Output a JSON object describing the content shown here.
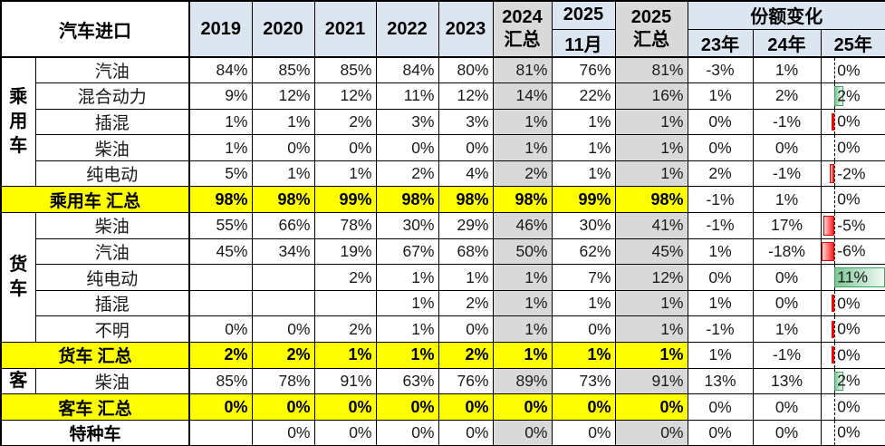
{
  "colors": {
    "header_blue": "#DCE6F1",
    "column_gray": "#D9D9D9",
    "summary_yellow": "#FFFF00",
    "databar_green": "#63BE7B",
    "databar_red": "#FF0000",
    "border_black": "#000000"
  },
  "table": {
    "header": {
      "title": "汽车进口",
      "years": [
        "2019",
        "2020",
        "2021",
        "2022",
        "2023"
      ],
      "total_2024": {
        "line1": "2024",
        "line2": "汇总"
      },
      "y2025": "2025",
      "nov": "11月",
      "total_2025": {
        "line1": "2025",
        "line2": "汇总"
      },
      "share_change": {
        "label": "份额变化",
        "years": [
          "23年",
          "24年",
          "25年"
        ]
      }
    },
    "rows": [
      {
        "kind": "data",
        "group": "乘用车",
        "group_span": 5,
        "label": "汽油",
        "values": [
          "84%",
          "85%",
          "85%",
          "84%",
          "80%",
          "81%",
          "76%",
          "81%"
        ],
        "share": [
          "-3%",
          "1%"
        ],
        "col25": {
          "text": "0%",
          "bar": "none",
          "size": 0
        }
      },
      {
        "kind": "data",
        "label": "混合动力",
        "values": [
          "9%",
          "12%",
          "12%",
          "11%",
          "12%",
          "14%",
          "22%",
          "16%"
        ],
        "share": [
          "1%",
          "2%"
        ],
        "col25": {
          "text": "2%",
          "bar": "pos",
          "size": 2
        }
      },
      {
        "kind": "data",
        "label": "插混",
        "values": [
          "1%",
          "1%",
          "2%",
          "3%",
          "3%",
          "1%",
          "1%",
          "1%"
        ],
        "share": [
          "0%",
          "-1%"
        ],
        "col25": {
          "text": "0%",
          "bar": "tick",
          "size": 0
        }
      },
      {
        "kind": "data",
        "label": "柴油",
        "values": [
          "1%",
          "0%",
          "0%",
          "0%",
          "0%",
          "1%",
          "1%",
          "1%"
        ],
        "share": [
          "0%",
          "0%"
        ],
        "col25": {
          "text": "0%",
          "bar": "none",
          "size": 0
        }
      },
      {
        "kind": "data",
        "label": "纯电动",
        "values": [
          "5%",
          "1%",
          "1%",
          "2%",
          "4%",
          "2%",
          "1%",
          "1%"
        ],
        "share": [
          "2%",
          "-1%"
        ],
        "col25": {
          "text": "-2%",
          "bar": "neg",
          "size": 2
        }
      },
      {
        "kind": "summary",
        "label": "乘用车 汇总",
        "values": [
          "98%",
          "98%",
          "99%",
          "98%",
          "98%",
          "98%",
          "99%",
          "98%"
        ],
        "share": [
          "-1%",
          "1%"
        ],
        "col25": {
          "text": "0%",
          "bar": "none",
          "size": 0
        }
      },
      {
        "kind": "data",
        "group": "货车",
        "group_span": 5,
        "label": "柴油",
        "values": [
          "55%",
          "66%",
          "78%",
          "30%",
          "29%",
          "46%",
          "30%",
          "41%"
        ],
        "share": [
          "-1%",
          "17%"
        ],
        "col25": {
          "text": "-5%",
          "bar": "neg",
          "size": 5
        }
      },
      {
        "kind": "data",
        "label": "汽油",
        "values": [
          "45%",
          "34%",
          "19%",
          "67%",
          "68%",
          "50%",
          "62%",
          "45%"
        ],
        "share": [
          "1%",
          "-18%"
        ],
        "col25": {
          "text": "-6%",
          "bar": "neg",
          "size": 6
        }
      },
      {
        "kind": "data",
        "label": "纯电动",
        "values": [
          "",
          "",
          "2%",
          "1%",
          "1%",
          "1%",
          "7%",
          "12%"
        ],
        "share": [
          "0%",
          "0%"
        ],
        "col25": {
          "text": "11%",
          "bar": "pos",
          "size": 11
        }
      },
      {
        "kind": "data",
        "label": "插混",
        "values": [
          "",
          "",
          "",
          "1%",
          "2%",
          "1%",
          "1%",
          "1%"
        ],
        "share": [
          "1%",
          "0%"
        ],
        "col25": {
          "text": "0%",
          "bar": "tick",
          "size": 0
        }
      },
      {
        "kind": "data",
        "label": "不明",
        "values": [
          "0%",
          "0%",
          "2%",
          "1%",
          "0%",
          "1%",
          "0%",
          "1%"
        ],
        "share": [
          "-1%",
          "1%"
        ],
        "col25": {
          "text": "0%",
          "bar": "tick",
          "size": 0
        }
      },
      {
        "kind": "summary",
        "label": "货车 汇总",
        "values": [
          "2%",
          "2%",
          "1%",
          "1%",
          "2%",
          "1%",
          "1%",
          "1%"
        ],
        "share": [
          "1%",
          "-1%"
        ],
        "col25": {
          "text": "0%",
          "bar": "tick",
          "size": 0
        }
      },
      {
        "kind": "data",
        "group": "客",
        "group_span": 1,
        "label": "柴油",
        "values": [
          "85%",
          "78%",
          "91%",
          "63%",
          "76%",
          "89%",
          "73%",
          "91%"
        ],
        "share": [
          "13%",
          "13%"
        ],
        "col25": {
          "text": "2%",
          "bar": "pos",
          "size": 2
        }
      },
      {
        "kind": "summary",
        "label": "客车 汇总",
        "values": [
          "0%",
          "0%",
          "0%",
          "0%",
          "0%",
          "0%",
          "0%",
          "0%"
        ],
        "share": [
          "0%",
          "0%"
        ],
        "col25": {
          "text": "0%",
          "bar": "none",
          "size": 0
        }
      },
      {
        "kind": "special",
        "label": "特种车",
        "values": [
          "",
          "0%",
          "0%",
          "0%",
          "0%",
          "0%",
          "0%",
          "0%"
        ],
        "share": [
          "0%",
          "0%"
        ],
        "col25": {
          "text": "0%",
          "bar": "none",
          "size": 0
        }
      }
    ]
  }
}
